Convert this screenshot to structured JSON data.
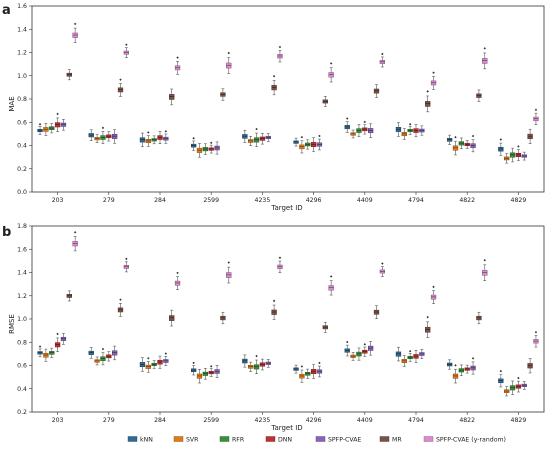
{
  "panels": [
    {
      "letter": "a",
      "ylabel": "MAE",
      "xlabel": "Target ID"
    },
    {
      "letter": "b",
      "ylabel": "RMSE",
      "xlabel": "Target ID"
    }
  ],
  "colors": {
    "kNN": "#2f6b93",
    "SVR": "#e07b1a",
    "RFR": "#3a8f3a",
    "DNN": "#c03030",
    "SPFP-CVAE": "#8a63b8",
    "MR": "#7a5248",
    "SPFP-CVAE (y-random)": "#dc8ad0"
  },
  "legend": [
    "kNN",
    "SVR",
    "RFR",
    "DNN",
    "SPFP-CVAE",
    "MR",
    "SPFP-CVAE (y-random)"
  ],
  "chart_data": [
    {
      "type": "box",
      "title": "",
      "panel": "a",
      "xlabel": "Target ID",
      "ylabel": "MAE",
      "ylim": [
        0.0,
        1.6
      ],
      "yticks": [
        "0.0",
        "0.2",
        "0.4",
        "0.6",
        "0.8",
        "1.0",
        "1.2",
        "1.4",
        "1.6"
      ],
      "categories": [
        "203",
        "279",
        "284",
        "2599",
        "4235",
        "4296",
        "4409",
        "4794",
        "4822",
        "4829"
      ],
      "series_names": [
        "kNN",
        "SVR",
        "RFR",
        "DNN",
        "SPFP-CVAE",
        "MR",
        "SPFP-CVAE (y-random)"
      ],
      "medians": [
        [
          0.53,
          0.54,
          0.55,
          0.58,
          0.58,
          1.01,
          1.35
        ],
        [
          0.49,
          0.46,
          0.47,
          0.48,
          0.48,
          0.88,
          1.2
        ],
        [
          0.45,
          0.44,
          0.45,
          0.47,
          0.46,
          0.82,
          1.07
        ],
        [
          0.4,
          0.36,
          0.37,
          0.37,
          0.38,
          0.84,
          1.09
        ],
        [
          0.48,
          0.44,
          0.45,
          0.46,
          0.47,
          0.9,
          1.17
        ],
        [
          0.43,
          0.39,
          0.41,
          0.41,
          0.41,
          0.78,
          1.01
        ],
        [
          0.56,
          0.5,
          0.53,
          0.54,
          0.53,
          0.87,
          1.12
        ],
        [
          0.54,
          0.5,
          0.53,
          0.53,
          0.53,
          0.76,
          0.94
        ],
        [
          0.45,
          0.38,
          0.42,
          0.41,
          0.4,
          0.83,
          1.13
        ],
        [
          0.37,
          0.29,
          0.32,
          0.32,
          0.31,
          0.48,
          0.63
        ]
      ]
    },
    {
      "type": "box",
      "title": "",
      "panel": "b",
      "xlabel": "Target ID",
      "ylabel": "RMSE",
      "ylim": [
        0.2,
        1.8
      ],
      "yticks": [
        "0.2",
        "0.4",
        "0.6",
        "0.8",
        "1.0",
        "1.2",
        "1.4",
        "1.6",
        "1.8"
      ],
      "categories": [
        "203",
        "279",
        "284",
        "2599",
        "4235",
        "4296",
        "4409",
        "4794",
        "4822",
        "4829"
      ],
      "series_names": [
        "kNN",
        "SVR",
        "RFR",
        "DNN",
        "SPFP-CVAE",
        "MR",
        "SPFP-CVAE (y-random)"
      ],
      "medians": [
        [
          0.71,
          0.69,
          0.71,
          0.78,
          0.83,
          1.2,
          1.65
        ],
        [
          0.71,
          0.64,
          0.66,
          0.68,
          0.71,
          1.08,
          1.45
        ],
        [
          0.61,
          0.59,
          0.61,
          0.63,
          0.64,
          1.01,
          1.31
        ],
        [
          0.56,
          0.51,
          0.53,
          0.54,
          0.55,
          1.01,
          1.38
        ],
        [
          0.64,
          0.59,
          0.59,
          0.61,
          0.62,
          1.06,
          1.45
        ],
        [
          0.57,
          0.51,
          0.53,
          0.55,
          0.55,
          0.93,
          1.27
        ],
        [
          0.73,
          0.68,
          0.7,
          0.72,
          0.75,
          1.06,
          1.41
        ],
        [
          0.7,
          0.64,
          0.67,
          0.68,
          0.7,
          0.91,
          1.19
        ],
        [
          0.61,
          0.51,
          0.56,
          0.57,
          0.58,
          1.01,
          1.4
        ],
        [
          0.47,
          0.38,
          0.41,
          0.42,
          0.43,
          0.6,
          0.81
        ]
      ]
    }
  ]
}
